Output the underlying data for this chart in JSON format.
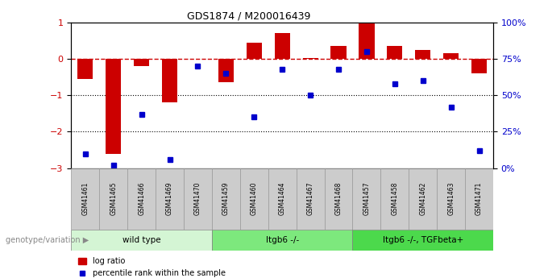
{
  "title": "GDS1874 / M200016439",
  "samples": [
    "GSM41461",
    "GSM41465",
    "GSM41466",
    "GSM41469",
    "GSM41470",
    "GSM41459",
    "GSM41460",
    "GSM41464",
    "GSM41467",
    "GSM41468",
    "GSM41457",
    "GSM41458",
    "GSM41462",
    "GSM41463",
    "GSM41471"
  ],
  "log_ratio": [
    -0.55,
    -2.6,
    -0.2,
    -1.2,
    0.0,
    -0.65,
    0.45,
    0.7,
    0.03,
    0.35,
    1.0,
    0.35,
    0.25,
    0.15,
    -0.4
  ],
  "percentile": [
    10,
    2,
    37,
    6,
    70,
    65,
    35,
    68,
    50,
    68,
    80,
    58,
    60,
    42,
    12
  ],
  "groups": [
    {
      "label": "wild type",
      "start": 0,
      "end": 5,
      "color": "#d4f5d4"
    },
    {
      "label": "Itgb6 -/-",
      "start": 5,
      "end": 10,
      "color": "#7de87d"
    },
    {
      "label": "Itgb6 -/-, TGFbeta+",
      "start": 10,
      "end": 15,
      "color": "#4cd94c"
    }
  ],
  "ylim_left": [
    -3.0,
    1.0
  ],
  "ylim_right": [
    0,
    100
  ],
  "yticks_left": [
    -3,
    -2,
    -1,
    0,
    1
  ],
  "yticks_right": [
    0,
    25,
    50,
    75,
    100
  ],
  "yticklabels_right": [
    "0%",
    "25%",
    "50%",
    "75%",
    "100%"
  ],
  "bar_color": "#cc0000",
  "dot_color": "#0000cc",
  "hline_color": "#cc0000",
  "dotted_line_color": "#000000",
  "bg_color": "#ffffff",
  "plot_bg": "#ffffff",
  "tick_label_color_left": "#cc0000",
  "tick_label_color_right": "#0000cc",
  "legend_bar_label": "log ratio",
  "legend_dot_label": "percentile rank within the sample",
  "genotype_label": "genotype/variation",
  "sample_box_color": "#cccccc",
  "sample_box_edge": "#999999"
}
